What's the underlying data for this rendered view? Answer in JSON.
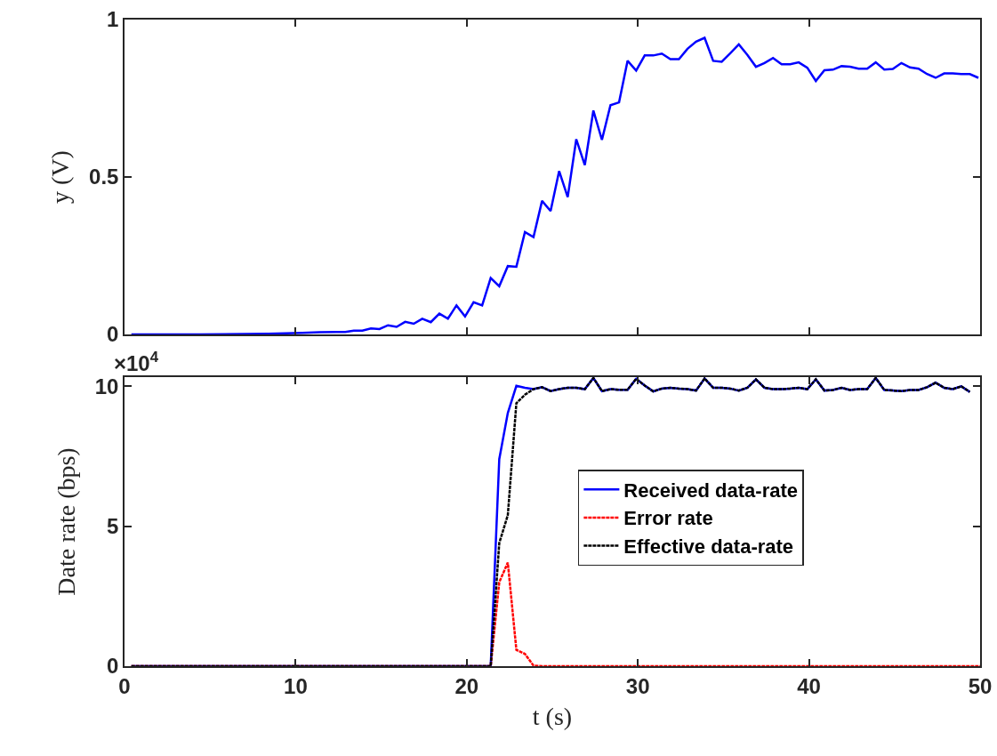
{
  "chart_data": [
    {
      "type": "line",
      "ylabel": "y (V)",
      "xlim": [
        0,
        50
      ],
      "xticks": [
        0,
        10,
        20,
        30,
        40,
        50
      ],
      "ylim": [
        0,
        1
      ],
      "yticks": [
        0,
        0.5,
        1
      ],
      "tick_labels": "y",
      "grid": false,
      "legend": false,
      "marker": "none",
      "line_style": "solid",
      "x": [
        0.4,
        4.4,
        8.4,
        10.4,
        11.4,
        12.4,
        12.9,
        13.4,
        13.9,
        14.4,
        14.9,
        15.4,
        15.9,
        16.4,
        16.9,
        17.4,
        17.9,
        18.4,
        18.9,
        19.4,
        19.9,
        20.4,
        20.9,
        21.4,
        21.9,
        22.4,
        22.9,
        23.4,
        23.9,
        24.4,
        24.9,
        25.4,
        25.9,
        26.4,
        26.9,
        27.4,
        27.9,
        28.4,
        28.9,
        29.4,
        29.9,
        30.4,
        30.9,
        31.4,
        31.9,
        32.4,
        32.9,
        33.4,
        33.9,
        34.4,
        34.9,
        35.4,
        35.9,
        36.4,
        36.9,
        37.4,
        37.9,
        38.4,
        38.9,
        39.4,
        39.9,
        40.4,
        40.9,
        41.4,
        41.9,
        42.4,
        42.9,
        43.4,
        43.9,
        44.4,
        44.9,
        45.4,
        45.9,
        46.4,
        46.9,
        47.4,
        47.9,
        48.4,
        48.9,
        49.4,
        49.9
      ],
      "series": [
        {
          "color": "#0000ff",
          "values": [
            0,
            0,
            0.002,
            0.005,
            0.007,
            0.008,
            0.008,
            0.012,
            0.012,
            0.019,
            0.017,
            0.029,
            0.024,
            0.04,
            0.034,
            0.05,
            0.039,
            0.066,
            0.05,
            0.092,
            0.057,
            0.102,
            0.092,
            0.179,
            0.153,
            0.217,
            0.215,
            0.325,
            0.309,
            0.424,
            0.392,
            0.519,
            0.436,
            0.62,
            0.538,
            0.711,
            0.618,
            0.728,
            0.737,
            0.869,
            0.838,
            0.886,
            0.886,
            0.892,
            0.874,
            0.874,
            0.907,
            0.93,
            0.942,
            0.869,
            0.866,
            0.893,
            0.921,
            0.888,
            0.85,
            0.862,
            0.878,
            0.858,
            0.858,
            0.864,
            0.847,
            0.805,
            0.839,
            0.841,
            0.852,
            0.85,
            0.844,
            0.844,
            0.864,
            0.841,
            0.843,
            0.862,
            0.848,
            0.844,
            0.827,
            0.815,
            0.829,
            0.829,
            0.827,
            0.827,
            0.815
          ]
        }
      ]
    },
    {
      "type": "line",
      "xlabel": "t (s)",
      "ylabel": "Date rate (bps)",
      "annotations": [
        "×10$^{4}$"
      ],
      "xlim": [
        0,
        50
      ],
      "xticks": [
        0,
        10,
        20,
        30,
        40,
        50
      ],
      "ylim": [
        0,
        10.33
      ],
      "yticks": [
        0,
        5,
        10
      ],
      "grid": false,
      "legend": "right",
      "marker": "none",
      "series": [
        {
          "name": "Received data-rate",
          "color": "#0000ff",
          "line_style": "solid",
          "x": [
            0.4,
            21.4,
            21.9,
            22.4,
            22.9,
            23.4,
            23.9,
            24.4,
            24.9,
            25.4,
            25.9,
            26.4,
            26.9,
            27.4,
            27.9,
            28.4,
            28.9,
            29.4,
            29.9,
            30.4,
            30.9,
            31.4,
            31.9,
            32.4,
            32.9,
            33.4,
            33.9,
            34.4,
            34.9,
            35.4,
            35.9,
            36.4,
            36.9,
            37.4,
            37.9,
            38.4,
            38.9,
            39.4,
            39.9,
            40.4,
            40.9,
            41.4,
            41.9,
            42.4,
            42.9,
            43.4,
            43.9,
            44.4,
            44.9,
            45.4,
            45.9,
            46.4,
            46.9,
            47.4,
            47.9,
            48.4,
            48.9,
            49.4
          ],
          "values": [
            0,
            0,
            7.4,
            9.05,
            10.02,
            9.95,
            9.9,
            9.97,
            9.83,
            9.9,
            9.95,
            9.95,
            9.9,
            10.3,
            9.83,
            9.9,
            9.88,
            9.88,
            10.27,
            10.03,
            9.82,
            9.92,
            9.95,
            9.92,
            9.9,
            9.85,
            10.28,
            9.95,
            9.95,
            9.92,
            9.85,
            9.95,
            10.25,
            9.95,
            9.9,
            9.9,
            9.92,
            9.95,
            9.9,
            10.25,
            9.85,
            9.87,
            9.95,
            9.87,
            9.9,
            9.9,
            10.3,
            9.87,
            9.85,
            9.83,
            9.87,
            9.87,
            9.97,
            10.13,
            9.95,
            9.9,
            10.0,
            9.8
          ]
        },
        {
          "name": "Error rate",
          "color": "#ff0000",
          "line_style": "dashed",
          "x": [
            0.4,
            21.4,
            21.9,
            22.4,
            22.9,
            23.4,
            23.9,
            24.4,
            50
          ],
          "values": [
            0,
            0,
            3.0,
            3.7,
            0.58,
            0.44,
            0.02,
            0,
            0
          ]
        },
        {
          "name": "Effective data-rate",
          "color": "#000000",
          "line_style": "dashed",
          "x": [
            0.4,
            21.4,
            21.9,
            22.4,
            22.9,
            23.4,
            23.9,
            24.4,
            24.9,
            25.4,
            25.9,
            26.4,
            26.9,
            27.4,
            27.9,
            28.4,
            28.9,
            29.4,
            29.9,
            30.4,
            30.9,
            31.4,
            31.9,
            32.4,
            32.9,
            33.4,
            33.9,
            34.4,
            34.9,
            35.4,
            35.9,
            36.4,
            36.9,
            37.4,
            37.9,
            38.4,
            38.9,
            39.4,
            39.9,
            40.4,
            40.9,
            41.4,
            41.9,
            42.4,
            42.9,
            43.4,
            43.9,
            44.4,
            44.9,
            45.4,
            45.9,
            46.4,
            46.9,
            47.4,
            47.9,
            48.4,
            48.9,
            49.4
          ],
          "values": [
            0,
            0,
            4.4,
            5.4,
            9.4,
            9.7,
            9.9,
            9.97,
            9.83,
            9.9,
            9.95,
            9.95,
            9.9,
            10.3,
            9.83,
            9.9,
            9.88,
            9.88,
            10.27,
            10.03,
            9.82,
            9.92,
            9.95,
            9.92,
            9.9,
            9.85,
            10.28,
            9.95,
            9.95,
            9.92,
            9.85,
            9.95,
            10.25,
            9.95,
            9.9,
            9.9,
            9.92,
            9.95,
            9.9,
            10.25,
            9.85,
            9.87,
            9.95,
            9.87,
            9.9,
            9.9,
            10.3,
            9.87,
            9.85,
            9.83,
            9.87,
            9.87,
            9.97,
            10.13,
            9.95,
            9.9,
            10.0,
            9.8
          ]
        }
      ]
    }
  ]
}
